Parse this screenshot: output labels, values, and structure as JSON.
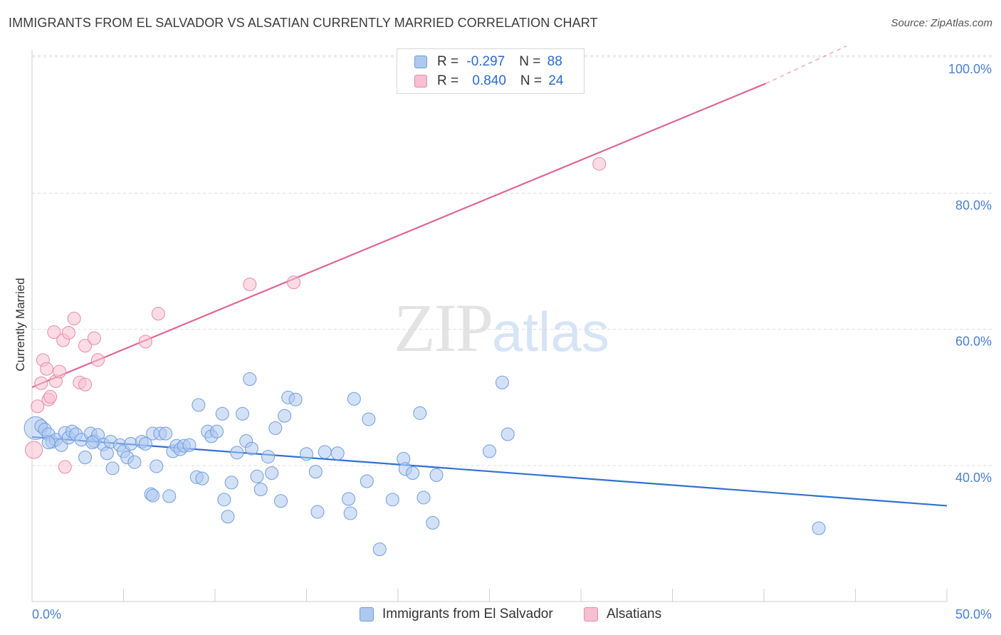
{
  "title": "IMMIGRANTS FROM EL SALVADOR VS ALSATIAN CURRENTLY MARRIED CORRELATION CHART",
  "source": "Source: ZipAtlas.com",
  "watermark": {
    "zip": "ZIP",
    "atlas": "atlas"
  },
  "legend": {
    "rows": [
      {
        "r_label": "R = ",
        "r_value": "-0.297",
        "n_label": "N = ",
        "n_value": "88"
      },
      {
        "r_label": "R = ",
        "r_value": "0.840",
        "n_label": "N = ",
        "n_value": "24"
      }
    ]
  },
  "bottom_legend": {
    "series1": "Immigrants from El Salvador",
    "series2": "Alsatians"
  },
  "colors": {
    "blue_fill": "#aec9f0",
    "blue_stroke": "#6f9de0",
    "blue_line": "#2d72d2",
    "pink_fill": "#f7bfd0",
    "pink_stroke": "#e98aa8",
    "pink_line": "#e06690",
    "tick_text": "#4a7fd4"
  },
  "chart_data": {
    "type": "scatter",
    "xlabel": "",
    "ylabel": "Currently Married",
    "xlim": [
      0,
      50
    ],
    "ylim": [
      20,
      102
    ],
    "x_tick_labels": [
      {
        "value": 0,
        "label": "0.0%"
      },
      {
        "value": 50,
        "label": "50.0%"
      }
    ],
    "y_tick_labels": [
      {
        "value": 40,
        "label": "40.0%"
      },
      {
        "value": 60,
        "label": "60.0%"
      },
      {
        "value": 80,
        "label": "80.0%"
      },
      {
        "value": 100,
        "label": "100.0%"
      }
    ],
    "grid": true,
    "series": [
      {
        "name": "Immigrants from El Salvador",
        "color": "#6f9de0",
        "points": [
          [
            0.2,
            45.5
          ],
          [
            0.5,
            45.8
          ],
          [
            0.7,
            45.3
          ],
          [
            0.9,
            44.6
          ],
          [
            1.1,
            43.5
          ],
          [
            1.3,
            43.8
          ],
          [
            1.6,
            43.0
          ],
          [
            1.8,
            44.8
          ],
          [
            2.0,
            44.1
          ],
          [
            2.2,
            45.0
          ],
          [
            2.4,
            44.6
          ],
          [
            2.7,
            43.8
          ],
          [
            2.9,
            41.2
          ],
          [
            3.2,
            44.7
          ],
          [
            3.4,
            43.6
          ],
          [
            3.6,
            44.5
          ],
          [
            3.9,
            43.1
          ],
          [
            4.1,
            41.8
          ],
          [
            4.3,
            43.5
          ],
          [
            4.4,
            39.6
          ],
          [
            4.8,
            43.0
          ],
          [
            5.0,
            42.1
          ],
          [
            5.2,
            41.2
          ],
          [
            5.4,
            43.2
          ],
          [
            5.6,
            40.5
          ],
          [
            6.0,
            43.5
          ],
          [
            6.2,
            43.2
          ],
          [
            6.5,
            35.8
          ],
          [
            6.6,
            35.6
          ],
          [
            6.6,
            44.7
          ],
          [
            6.8,
            39.9
          ],
          [
            7.0,
            44.7
          ],
          [
            7.3,
            44.7
          ],
          [
            7.5,
            35.5
          ],
          [
            7.7,
            42.1
          ],
          [
            7.9,
            42.9
          ],
          [
            8.1,
            42.4
          ],
          [
            8.3,
            42.9
          ],
          [
            8.6,
            43.0
          ],
          [
            9.0,
            38.3
          ],
          [
            9.1,
            48.9
          ],
          [
            9.3,
            38.1
          ],
          [
            9.6,
            45.0
          ],
          [
            9.8,
            44.3
          ],
          [
            10.1,
            45.0
          ],
          [
            10.4,
            47.6
          ],
          [
            10.5,
            35.0
          ],
          [
            10.7,
            32.5
          ],
          [
            10.9,
            37.5
          ],
          [
            11.2,
            41.9
          ],
          [
            11.5,
            47.6
          ],
          [
            11.7,
            43.6
          ],
          [
            11.9,
            52.7
          ],
          [
            12.0,
            42.5
          ],
          [
            12.3,
            38.4
          ],
          [
            12.5,
            36.5
          ],
          [
            12.9,
            41.3
          ],
          [
            13.1,
            38.9
          ],
          [
            13.3,
            45.5
          ],
          [
            13.6,
            34.8
          ],
          [
            13.8,
            47.3
          ],
          [
            14.0,
            50.0
          ],
          [
            14.4,
            49.7
          ],
          [
            15.0,
            41.7
          ],
          [
            15.5,
            39.1
          ],
          [
            15.6,
            33.2
          ],
          [
            16.0,
            42.0
          ],
          [
            16.7,
            41.8
          ],
          [
            17.3,
            35.1
          ],
          [
            17.4,
            33.0
          ],
          [
            17.6,
            49.8
          ],
          [
            18.3,
            37.7
          ],
          [
            18.4,
            46.8
          ],
          [
            19.0,
            27.7
          ],
          [
            19.7,
            35.0
          ],
          [
            20.3,
            41.0
          ],
          [
            20.4,
            39.5
          ],
          [
            20.8,
            38.9
          ],
          [
            21.2,
            47.7
          ],
          [
            21.4,
            35.3
          ],
          [
            21.9,
            31.6
          ],
          [
            22.1,
            38.6
          ],
          [
            25.0,
            42.1
          ],
          [
            25.7,
            52.2
          ],
          [
            26.0,
            44.6
          ],
          [
            43.0,
            30.8
          ],
          [
            0.9,
            43.4
          ],
          [
            3.3,
            43.4
          ]
        ],
        "trend": [
          [
            0,
            44.2
          ],
          [
            50,
            34.1
          ]
        ]
      },
      {
        "name": "Alsatians",
        "color": "#e98aa8",
        "points": [
          [
            0.1,
            42.3
          ],
          [
            0.3,
            48.7
          ],
          [
            0.5,
            52.1
          ],
          [
            0.6,
            55.5
          ],
          [
            0.8,
            54.2
          ],
          [
            0.9,
            49.7
          ],
          [
            1.0,
            50.1
          ],
          [
            1.2,
            59.6
          ],
          [
            1.3,
            52.4
          ],
          [
            1.5,
            53.8
          ],
          [
            1.7,
            58.4
          ],
          [
            1.8,
            39.8
          ],
          [
            2.0,
            59.5
          ],
          [
            2.3,
            61.6
          ],
          [
            2.6,
            52.2
          ],
          [
            2.9,
            51.9
          ],
          [
            2.9,
            57.6
          ],
          [
            3.4,
            58.7
          ],
          [
            3.6,
            55.5
          ],
          [
            6.2,
            58.2
          ],
          [
            6.9,
            62.3
          ],
          [
            11.9,
            66.6
          ],
          [
            14.3,
            66.9
          ],
          [
            31.0,
            84.3
          ]
        ],
        "trend_solid": [
          [
            0,
            51.5
          ],
          [
            40.1,
            96.1
          ]
        ],
        "trend_dashed": [
          [
            40.1,
            96.1
          ],
          [
            44.5,
            101.6
          ]
        ]
      }
    ]
  }
}
